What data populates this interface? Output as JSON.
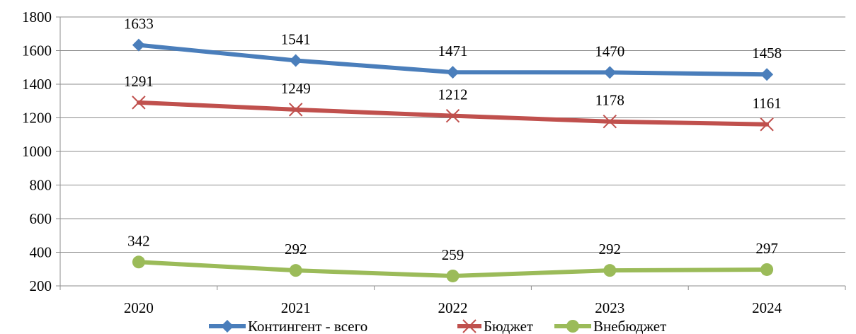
{
  "chart_data": {
    "type": "line",
    "categories": [
      "2020",
      "2021",
      "2022",
      "2023",
      "2024"
    ],
    "ylim": [
      200,
      1800
    ],
    "ytick_step": 200,
    "yticks": [
      "200",
      "400",
      "600",
      "800",
      "1000",
      "1200",
      "1400",
      "1600",
      "1800"
    ],
    "grid": true,
    "legend_position": "bottom",
    "title": "",
    "xlabel": "",
    "ylabel": "",
    "series": [
      {
        "name": "Контингент - всего",
        "values": [
          1633,
          1541,
          1471,
          1470,
          1458
        ],
        "labels": [
          "1633",
          "1541",
          "1471",
          "1470",
          "1458"
        ],
        "color": "#4a7ebb",
        "marker": "diamond"
      },
      {
        "name": "Бюджет",
        "values": [
          1291,
          1249,
          1212,
          1178,
          1161
        ],
        "labels": [
          "1291",
          "1249",
          "1212",
          "1178",
          "1161"
        ],
        "color": "#c0504d",
        "marker": "x"
      },
      {
        "name": "Внебюджет",
        "values": [
          342,
          292,
          259,
          292,
          297
        ],
        "labels": [
          "342",
          "292",
          "259",
          "292",
          "297"
        ],
        "color": "#9bbb59",
        "marker": "circle"
      }
    ]
  }
}
